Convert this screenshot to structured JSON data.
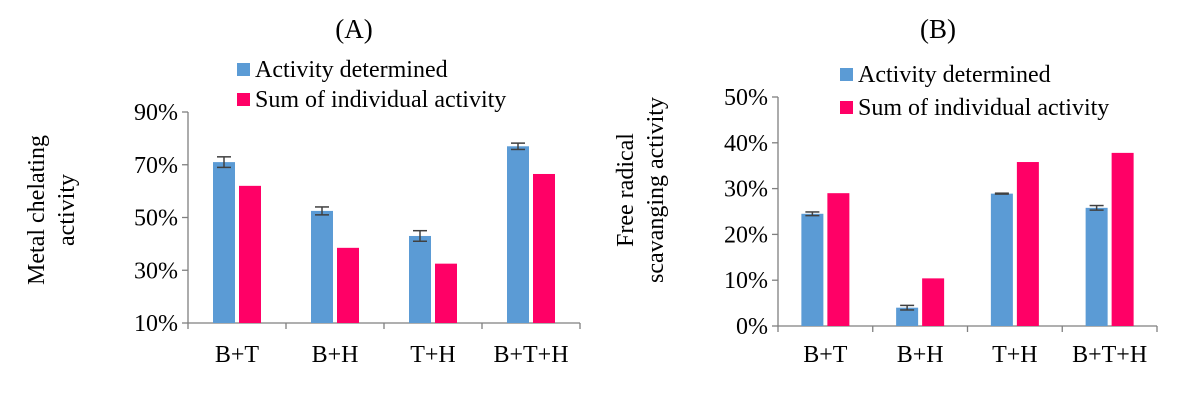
{
  "colors": {
    "determined": "#5B9BD5",
    "sum": "#FF0066",
    "axis": "#7F7F7F",
    "errorbar": "#404040"
  },
  "chart_data": [
    {
      "type": "bar",
      "title": "(A)",
      "ylabel_lines": [
        "Metal chelating",
        "activity"
      ],
      "categories": [
        "B+T",
        "B+H",
        "T+H",
        "B+T+H"
      ],
      "ylim": [
        0.1,
        0.9
      ],
      "yticks": [
        0.1,
        0.3,
        0.5,
        0.7,
        0.9
      ],
      "ytick_labels": [
        "10%",
        "30%",
        "50%",
        "70%",
        "90%"
      ],
      "grid": false,
      "legend_position": "top",
      "series": [
        {
          "name": "Activity determined",
          "color_key": "determined",
          "values": [
            0.71,
            0.525,
            0.43,
            0.77
          ],
          "errors": [
            0.02,
            0.015,
            0.02,
            0.012
          ]
        },
        {
          "name": "Sum of individual activity",
          "color_key": "sum",
          "values": [
            0.62,
            0.385,
            0.325,
            0.665
          ]
        }
      ]
    },
    {
      "type": "bar",
      "title": "(B)",
      "ylabel_lines": [
        "Free radical",
        "scavanging activity"
      ],
      "categories": [
        "B+T",
        "B+H",
        "T+H",
        "B+T+H"
      ],
      "ylim": [
        0.0,
        0.5
      ],
      "yticks": [
        0.0,
        0.1,
        0.2,
        0.3,
        0.4,
        0.5
      ],
      "ytick_labels": [
        "0%",
        "10%",
        "20%",
        "30%",
        "40%",
        "50%"
      ],
      "grid": false,
      "legend_position": "top",
      "series": [
        {
          "name": "Activity determined",
          "color_key": "determined",
          "values": [
            0.245,
            0.04,
            0.289,
            0.258
          ],
          "errors": [
            0.004,
            0.005,
            0.001,
            0.005
          ]
        },
        {
          "name": "Sum of individual activity",
          "color_key": "sum",
          "values": [
            0.29,
            0.104,
            0.358,
            0.378
          ]
        }
      ]
    }
  ]
}
